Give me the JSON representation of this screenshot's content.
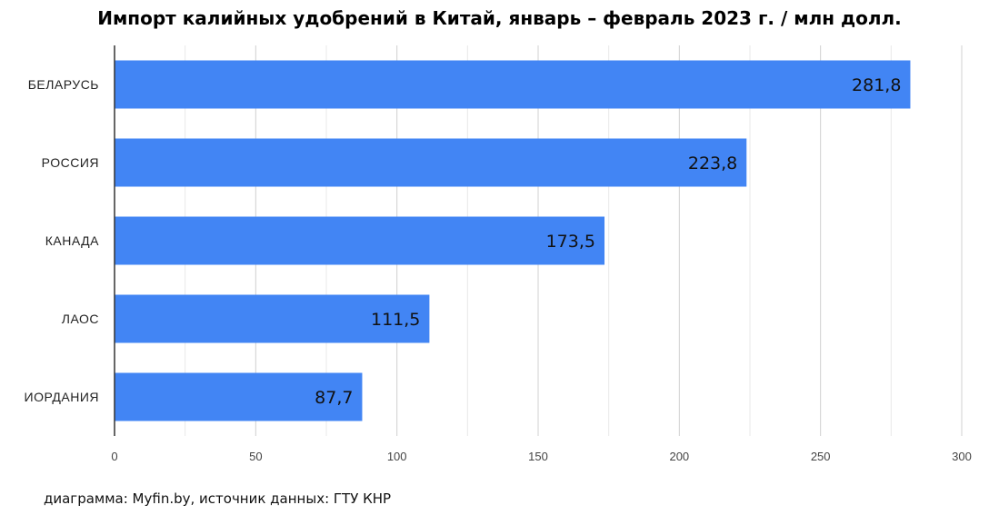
{
  "chart_data": {
    "type": "bar",
    "orientation": "horizontal",
    "title": "Импорт калийных удобрений в Китай, январь – февраль 2023 г. / млн долл.",
    "categories": [
      "БЕЛАРУСЬ",
      "РОССИЯ",
      "КАНАДА",
      "ЛАОС",
      "ИОРДАНИЯ"
    ],
    "values": [
      281.8,
      223.8,
      173.5,
      111.5,
      87.7
    ],
    "value_labels": [
      "281,8",
      "223,8",
      "173,5",
      "111,5",
      "87,7"
    ],
    "xlabel": "",
    "ylabel": "",
    "xlim": [
      0,
      300
    ],
    "xticks": [
      0,
      50,
      100,
      150,
      200,
      250,
      300
    ],
    "grid": true,
    "bar_color": "#4285f4"
  },
  "footer": "диаграмма: Myfin.by, источник данных: ГТУ КНР"
}
